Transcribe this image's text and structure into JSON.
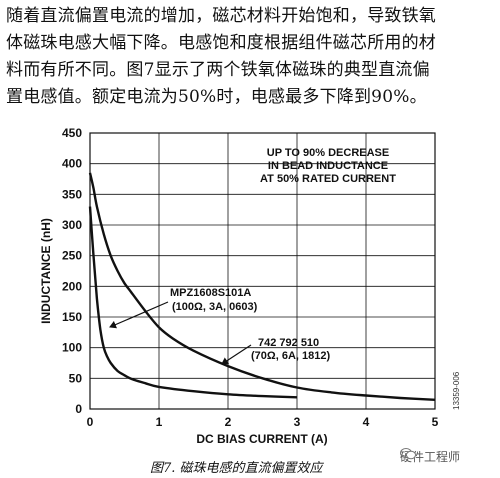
{
  "paragraph": {
    "lines": [
      "随着直流偏置电流的增加，磁芯材料开始饱和，导致铁氧",
      "体磁珠电感大幅下降。电感饱和度根据组件磁芯所用的材",
      "料而有所不同。图7显示了两个铁氧体磁珠的典型直流偏",
      "置电感值。额定电流为50%时，电感最多下降到90%。"
    ]
  },
  "chart_data": {
    "type": "line",
    "title": "",
    "xlabel": "DC BIAS CURRENT (A)",
    "ylabel": "INDUCTANCE (nH)",
    "xlim": [
      0,
      5
    ],
    "ylim": [
      0,
      450
    ],
    "xticks": [
      "0",
      "1",
      "2",
      "3",
      "4",
      "5"
    ],
    "yticks": [
      "0",
      "50",
      "100",
      "150",
      "200",
      "250",
      "300",
      "350",
      "400",
      "450"
    ],
    "grid": true,
    "annotation": [
      "UP TO 90% DECREASE",
      "IN BEAD INDUCTANCE",
      "AT 50% RATED CURRENT"
    ],
    "series": [
      {
        "name": "MPZ1608S101A",
        "label_lines": [
          "MPZ1608S101A",
          "(100Ω, 3A, 0603)"
        ],
        "x": [
          0,
          0.05,
          0.1,
          0.15,
          0.2,
          0.25,
          0.3,
          0.4,
          0.5,
          0.6,
          0.8,
          1.0,
          1.5,
          2.0,
          2.5,
          3.0
        ],
        "y": [
          330,
          250,
          180,
          130,
          100,
          85,
          75,
          62,
          55,
          49,
          42,
          36,
          29,
          24,
          21,
          19
        ]
      },
      {
        "name": "742 792 510",
        "label_lines": [
          "742 792 510",
          "(70Ω, 6A, 1812)"
        ],
        "x": [
          0,
          0.05,
          0.1,
          0.2,
          0.3,
          0.4,
          0.5,
          0.6,
          0.8,
          1.0,
          1.2,
          1.5,
          2.0,
          2.5,
          3.0,
          3.5,
          4.0,
          4.5,
          5.0
        ],
        "y": [
          385,
          360,
          330,
          285,
          250,
          225,
          205,
          190,
          160,
          133,
          115,
          95,
          70,
          50,
          35,
          27,
          22,
          18,
          15
        ]
      }
    ]
  },
  "caption": "图7. 磁珠电感的直流偏置效应",
  "doc_id": "13359-006",
  "watermark": "硬件工程师"
}
